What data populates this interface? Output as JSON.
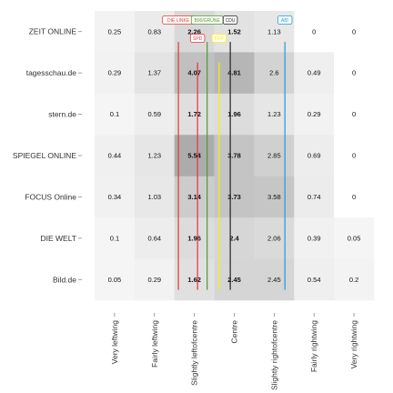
{
  "chart_data": {
    "type": "heatmap",
    "title": "",
    "xlabel": "",
    "ylabel": "",
    "rows": [
      "ZEIT ONLINE",
      "tagesschau.de",
      "stern.de",
      "SPIEGEL ONLINE",
      "FOCUS Online",
      "DIE WELT",
      "Bild.de"
    ],
    "columns": [
      "Very leftwing",
      "Fairly leftwing",
      "Slightly leftofcentre",
      "Centre",
      "Slightly rightofcentre",
      "Fairly rightwing",
      "Very rightwing"
    ],
    "values": [
      [
        0.25,
        0.83,
        2.26,
        1.52,
        1.13,
        0,
        0
      ],
      [
        0.29,
        1.37,
        4.07,
        4.81,
        2.6,
        0.49,
        0
      ],
      [
        0.1,
        0.59,
        1.72,
        1.96,
        1.23,
        0.29,
        0
      ],
      [
        0.44,
        1.23,
        5.54,
        3.78,
        2.85,
        0.69,
        0
      ],
      [
        0.34,
        1.03,
        3.14,
        3.73,
        3.58,
        0.74,
        0
      ],
      [
        0.1,
        0.64,
        1.96,
        2.4,
        2.06,
        0.39,
        0.05
      ],
      [
        0.05,
        0.29,
        1.62,
        2.45,
        2.45,
        0.54,
        0.2
      ]
    ],
    "value_range": [
      0,
      5.54
    ],
    "grid": false,
    "legend": "none",
    "parties": [
      {
        "name": "DIE LINKE",
        "x": 1.6,
        "y_top": 6.25,
        "y_bottom": 0.25,
        "color": "#e03c31",
        "label_pos": "top",
        "label_row": 0
      },
      {
        "name": "SPD",
        "x": 2.08,
        "y_top": 5.75,
        "y_bottom": 0.25,
        "color": "#e8323c",
        "label_pos": "top",
        "label_row": 1
      },
      {
        "name": "B90/GRÜNE",
        "x": 2.32,
        "y_top": 6.25,
        "y_bottom": 0.25,
        "color": "#4c9a2a",
        "label_pos": "top",
        "label_row": 0
      },
      {
        "name": "FDP",
        "x": 2.62,
        "y_top": 5.75,
        "y_bottom": 0.25,
        "color": "#ffed00",
        "label_pos": "top",
        "label_row": 1
      },
      {
        "name": "CDU",
        "x": 2.9,
        "y_top": 6.25,
        "y_bottom": 0.25,
        "color": "#222222",
        "label_pos": "top",
        "label_row": 0
      },
      {
        "name": "AfD",
        "x": 4.27,
        "y_top": 6.25,
        "y_bottom": 0.25,
        "color": "#1d9ad6",
        "label_pos": "top",
        "label_row": 0
      }
    ]
  }
}
